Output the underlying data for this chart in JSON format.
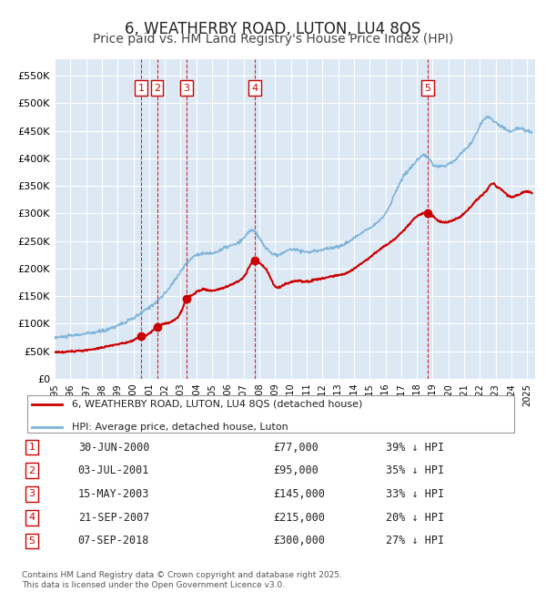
{
  "title": "6, WEATHERBY ROAD, LUTON, LU4 8QS",
  "subtitle": "Price paid vs. HM Land Registry's House Price Index (HPI)",
  "title_fontsize": 12,
  "subtitle_fontsize": 10,
  "background_color": "#ffffff",
  "chart_bg_color": "#dce9f5",
  "grid_color": "#ffffff",
  "ylabel_color": "#333333",
  "hpi_color": "#7eb3d8",
  "price_color": "#cc0000",
  "sale_marker_color": "#cc0000",
  "dashed_line_color": "#cc0000",
  "ylim": [
    0,
    580000
  ],
  "yticks": [
    0,
    50000,
    100000,
    150000,
    200000,
    250000,
    300000,
    350000,
    400000,
    450000,
    500000,
    550000
  ],
  "ytick_labels": [
    "£0",
    "£50K",
    "£100K",
    "£150K",
    "£200K",
    "£250K",
    "£300K",
    "£350K",
    "£400K",
    "£450K",
    "£500K",
    "£550K"
  ],
  "sales": [
    {
      "label": "1",
      "date_year": 2000.5,
      "price": 77000,
      "date_str": "30-JUN-2000",
      "pct": "39%",
      "dir": "↓"
    },
    {
      "label": "2",
      "date_year": 2001.5,
      "price": 95000,
      "date_str": "03-JUL-2001",
      "pct": "35%",
      "dir": "↓"
    },
    {
      "label": "3",
      "date_year": 2003.38,
      "price": 145000,
      "date_str": "15-MAY-2003",
      "pct": "33%",
      "dir": "↓"
    },
    {
      "label": "4",
      "date_year": 2007.72,
      "price": 215000,
      "date_str": "21-SEP-2007",
      "pct": "20%",
      "dir": "↓"
    },
    {
      "label": "5",
      "date_year": 2018.69,
      "price": 300000,
      "date_str": "07-SEP-2018",
      "pct": "27%",
      "dir": "↓"
    }
  ],
  "legend_entries": [
    {
      "label": "6, WEATHERBY ROAD, LUTON, LU4 8QS (detached house)",
      "color": "#cc0000"
    },
    {
      "label": "HPI: Average price, detached house, Luton",
      "color": "#7eb3d8"
    }
  ],
  "footer": "Contains HM Land Registry data © Crown copyright and database right 2025.\nThis data is licensed under the Open Government Licence v3.0.",
  "xmin": 1995.0,
  "xmax": 2025.5
}
